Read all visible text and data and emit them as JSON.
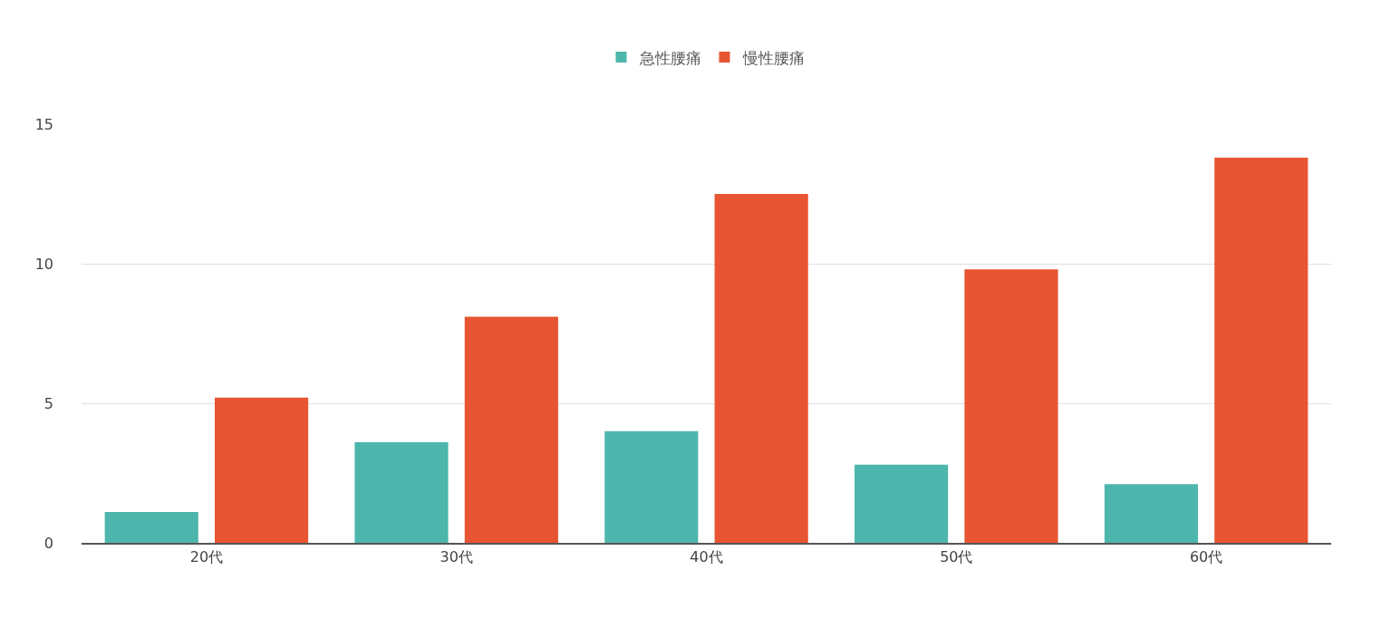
{
  "chart_data": {
    "type": "bar",
    "categories": [
      "20代",
      "30代",
      "40代",
      "50代",
      "60代"
    ],
    "series": [
      {
        "name": "急性腰痛",
        "color": "#4db6ac",
        "values": [
          1.1,
          3.6,
          4.0,
          2.8,
          2.1
        ]
      },
      {
        "name": "慢性腰痛",
        "color": "#e85532",
        "values": [
          5.2,
          8.1,
          12.5,
          9.8,
          13.8
        ]
      }
    ],
    "ylim": [
      0,
      15
    ],
    "yticks": [
      0,
      5,
      10,
      15
    ],
    "grid": "y",
    "legend": "top"
  }
}
